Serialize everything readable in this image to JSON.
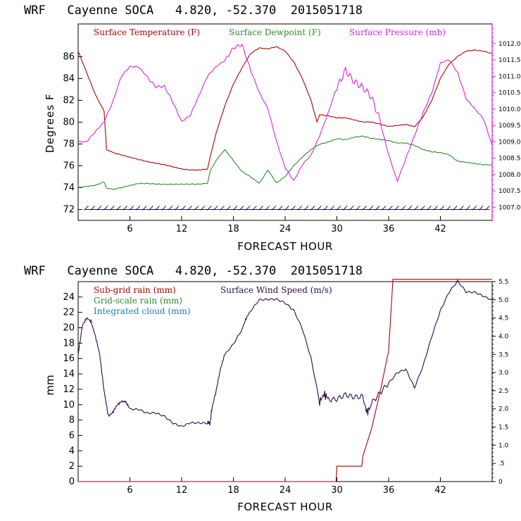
{
  "chart_data": [
    {
      "type": "line",
      "title": "WRF   Cayenne SOCA   4.820, -52.370  2015051718",
      "xlabel": "FORECAST HOUR",
      "ylabel": "Degrees F",
      "xlim": [
        0,
        48
      ],
      "ylim": [
        71,
        89
      ],
      "y2lim": [
        1006.6,
        1012.6
      ],
      "xticks": [
        "6",
        "12",
        "18",
        "24",
        "30",
        "36",
        "42"
      ],
      "yticks": [
        "72",
        "74",
        "76",
        "78",
        "80",
        "82",
        "84",
        "86"
      ],
      "y2ticks": [
        "1007.0",
        "1007.5",
        "1008.0",
        "1008.5",
        "1009.0",
        "1009.5",
        "1010.0",
        "1010.5",
        "1011.0",
        "1011.5",
        "1012.0"
      ],
      "legend": [
        "Surface Temperature (F)",
        "Surface Dewpoint (F)",
        "Surface Pressure (mb)"
      ],
      "colors": {
        "temperature": "#b00000",
        "dewpoint": "#2a8a2a",
        "pressure": "#e020e0",
        "wind_barbs": "#2a0a4a"
      },
      "series": [
        {
          "name": "Surface Temperature (F)",
          "x": [
            0,
            1,
            2,
            3,
            3.3,
            4,
            5,
            6,
            8,
            10,
            12,
            13,
            14,
            15,
            15.3,
            16,
            17,
            18,
            19,
            20,
            21,
            22,
            23,
            24,
            25,
            26,
            27,
            27.7,
            28,
            29,
            30,
            31,
            32,
            33,
            34,
            35,
            36,
            37,
            38,
            39,
            40,
            41,
            42,
            43,
            44,
            45,
            46,
            47,
            48
          ],
          "y": [
            86.5,
            84.5,
            82.5,
            81.0,
            77.5,
            77.2,
            77.0,
            76.8,
            76.4,
            76.1,
            75.7,
            75.6,
            75.6,
            75.7,
            76.8,
            79.0,
            81.5,
            83.5,
            85.0,
            86.3,
            86.8,
            86.7,
            86.9,
            86.5,
            85.5,
            84.0,
            82.0,
            80.0,
            80.7,
            80.6,
            80.4,
            80.4,
            80.2,
            80.0,
            80.0,
            79.8,
            79.6,
            79.7,
            79.8,
            79.6,
            80.5,
            82.0,
            84.0,
            85.3,
            86.0,
            86.5,
            86.6,
            86.5,
            86.3
          ]
        },
        {
          "name": "Surface Dewpoint (F)",
          "x": [
            0,
            1,
            2,
            3,
            3.3,
            4,
            5,
            6,
            7,
            8,
            10,
            12,
            13,
            14,
            15,
            15.3,
            16,
            17,
            18,
            19,
            20,
            21,
            22,
            23,
            24,
            25,
            26,
            27,
            28,
            29,
            30,
            31,
            32,
            33,
            34,
            35,
            36,
            37,
            38,
            39,
            40,
            41,
            42,
            43,
            44,
            45,
            46,
            47,
            48
          ],
          "y": [
            74.0,
            74.1,
            74.2,
            74.5,
            74.0,
            73.8,
            74.0,
            74.2,
            74.4,
            74.4,
            74.3,
            74.3,
            74.3,
            74.3,
            74.4,
            75.5,
            76.5,
            77.5,
            76.5,
            75.5,
            75.0,
            74.4,
            75.6,
            74.4,
            75.0,
            76.0,
            76.8,
            77.5,
            78.0,
            78.2,
            78.5,
            78.4,
            78.6,
            78.7,
            78.5,
            78.4,
            78.3,
            78.1,
            78.1,
            77.9,
            77.5,
            77.3,
            77.2,
            77.0,
            76.4,
            76.3,
            76.2,
            76.1,
            76.1
          ]
        },
        {
          "name": "Surface Pressure (mb)",
          "x": [
            0,
            1,
            2,
            3,
            4,
            5,
            6,
            7,
            8,
            9,
            10,
            11,
            12,
            13,
            14,
            15,
            16,
            17,
            18,
            19,
            20,
            21,
            22,
            23,
            24,
            25,
            26,
            27,
            28,
            29,
            30,
            31,
            32,
            33,
            34,
            35,
            36,
            37,
            38,
            39,
            40,
            41,
            42,
            43,
            44,
            45,
            46,
            47,
            48
          ],
          "y": [
            1009.0,
            1009.0,
            1009.3,
            1009.6,
            1010.2,
            1011.0,
            1011.3,
            1011.3,
            1011.0,
            1010.7,
            1010.7,
            1010.2,
            1009.6,
            1009.8,
            1010.4,
            1011.0,
            1011.3,
            1011.5,
            1011.9,
            1012.0,
            1011.2,
            1010.5,
            1010.0,
            1009.0,
            1008.2,
            1007.8,
            1008.3,
            1008.6,
            1009.2,
            1009.9,
            1010.7,
            1011.2,
            1010.8,
            1010.6,
            1010.3,
            1009.6,
            1008.6,
            1007.8,
            1008.5,
            1009.2,
            1009.9,
            1010.5,
            1011.4,
            1011.5,
            1011.1,
            1010.3,
            1010.0,
            1009.7,
            1008.9
          ]
        },
        {
          "name": "Wind barbs",
          "y": 72
        }
      ]
    },
    {
      "type": "line",
      "title": "WRF   Cayenne SOCA   4.820, -52.370  2015051718",
      "xlabel": "FORECAST HOUR",
      "ylabel": "mm",
      "xlim": [
        0,
        48
      ],
      "ylim": [
        0,
        26
      ],
      "y2lim": [
        0,
        5.5
      ],
      "xticks": [
        "6",
        "12",
        "18",
        "24",
        "30",
        "36",
        "42"
      ],
      "yticks": [
        "0",
        "2",
        "4",
        "6",
        "8",
        "10",
        "12",
        "14",
        "16",
        "18",
        "20",
        "22",
        "24"
      ],
      "y2ticks": [
        "0",
        ".5",
        "1.0",
        "1.5",
        "2.0",
        "2.5",
        "3.0",
        "3.5",
        "4.0",
        "4.5",
        "5.0",
        "5.5"
      ],
      "legend": [
        "Sub-grid rain (mm)",
        "Grid-scale rain (mm)",
        "Integrated cloud (mm)",
        "Surface Wind Speed (m/s)"
      ],
      "colors": {
        "subgrid": "#b00000",
        "gridscale": "#2a8a2a",
        "cloud": "#1a7ac8",
        "wind": "#2a0a4a"
      },
      "series": [
        {
          "name": "Sub-grid rain (mm)",
          "x": [
            0,
            29.9,
            30,
            31,
            32,
            32.9,
            33,
            34,
            35,
            36,
            36.5,
            37,
            48
          ],
          "y": [
            0,
            0,
            2.0,
            2.0,
            2.0,
            2.0,
            3.3,
            6.8,
            11.6,
            17.0,
            26.3,
            26.3,
            26.3
          ]
        },
        {
          "name": "Surface Wind Speed (m/s)",
          "x": [
            0,
            0.5,
            1,
            1.5,
            2,
            2.5,
            3,
            3.5,
            4,
            4.5,
            5,
            5.5,
            6,
            7,
            8,
            9,
            10,
            11,
            12,
            13,
            14,
            15,
            15.3,
            15.5,
            16,
            16.5,
            17,
            18,
            19,
            19.5,
            20,
            21,
            22,
            23,
            24,
            25,
            26,
            27,
            28,
            28.5,
            29,
            30,
            31,
            32,
            33,
            33.5,
            34,
            35,
            36,
            37,
            38,
            39,
            40,
            41,
            42,
            43,
            44,
            45,
            46,
            47,
            48
          ],
          "y": [
            3.5,
            4.3,
            4.5,
            4.4,
            4.0,
            3.5,
            2.5,
            1.8,
            1.9,
            2.1,
            2.2,
            2.2,
            2.0,
            2.0,
            1.9,
            1.9,
            1.8,
            1.6,
            1.5,
            1.6,
            1.6,
            1.6,
            1.6,
            2.0,
            2.5,
            3.1,
            3.5,
            3.8,
            4.2,
            4.5,
            4.7,
            5.0,
            5.0,
            5.0,
            4.9,
            4.7,
            4.2,
            3.4,
            2.2,
            2.4,
            2.3,
            2.3,
            2.4,
            2.3,
            2.3,
            1.9,
            2.1,
            2.4,
            2.7,
            3.0,
            3.1,
            2.6,
            3.2,
            4.0,
            4.7,
            5.2,
            5.5,
            5.2,
            5.2,
            5.1,
            5.0
          ]
        }
      ]
    }
  ]
}
